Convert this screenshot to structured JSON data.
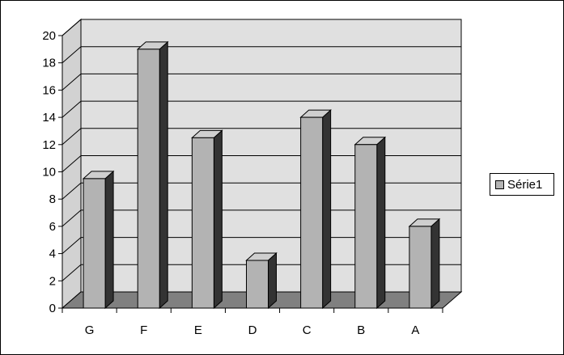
{
  "chart_data": {
    "type": "bar",
    "title": "",
    "xlabel": "",
    "ylabel": "",
    "categories": [
      "G",
      "F",
      "E",
      "D",
      "C",
      "B",
      "A"
    ],
    "series": [
      {
        "name": "Série1",
        "values": [
          9.5,
          19,
          12.5,
          3.5,
          14,
          12,
          6
        ]
      }
    ],
    "ylim": [
      0,
      20
    ],
    "yticks": [
      "0",
      "2",
      "4",
      "6",
      "8",
      "10",
      "12",
      "14",
      "16",
      "18",
      "20"
    ],
    "grid": true,
    "legend_position": "right",
    "three_d": true,
    "colors": {
      "bar_front": "#b3b3b3",
      "bar_side": "#333333",
      "bar_top": "#cfcfcf",
      "wall": "#e0e0e0",
      "floor": "#808080",
      "grid": "#000000"
    }
  }
}
